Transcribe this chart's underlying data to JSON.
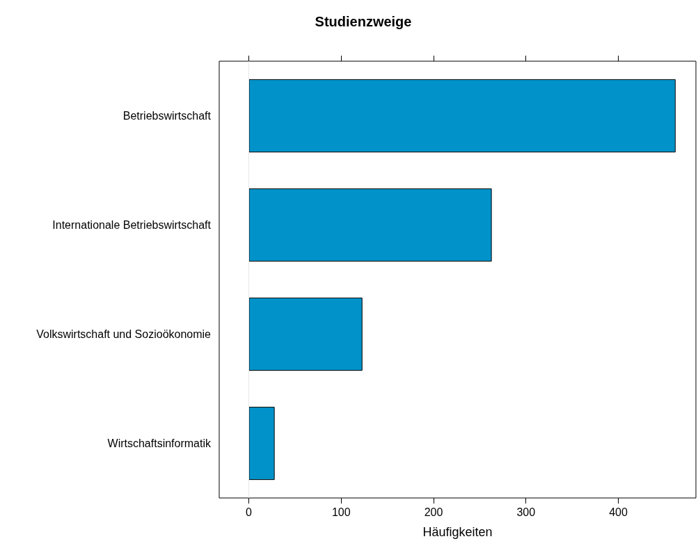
{
  "chart_data": {
    "type": "bar",
    "title": "Studienzweige",
    "xlabel": "Häufigkeiten",
    "orientation": "horizontal",
    "categories": [
      "Betriebswirtschaft",
      "Internationale Betriebswirtschaft",
      "Volkswirtschaft und Sozioökonomie",
      "Wirtschaftsinformatik"
    ],
    "values": [
      462,
      263,
      123,
      28
    ],
    "color": "#0092c8",
    "xlim": [
      -32,
      484
    ],
    "xticks": [
      0,
      100,
      200,
      300,
      400
    ],
    "ref_lines": [
      {
        "axis": "x",
        "value": 0,
        "color": "#e6e6e6"
      }
    ],
    "grid": false
  }
}
